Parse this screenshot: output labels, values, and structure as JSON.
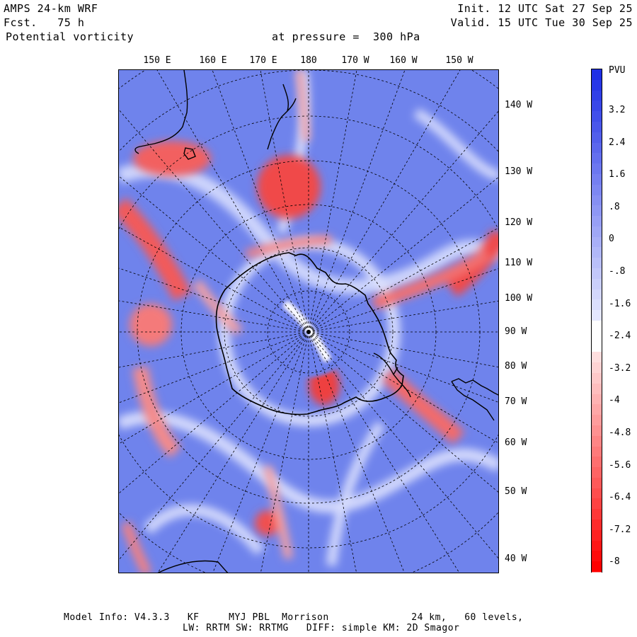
{
  "header": {
    "model": "AMPS 24-km WRF",
    "forecast": "Fcst.   75 h",
    "field": "Potential vorticity",
    "level": "at pressure =  300 hPa",
    "init": "Init. 12 UTC Sat 27 Sep 25",
    "valid": "Valid. 15 UTC Tue 30 Sep 25"
  },
  "map": {
    "lon_labels": [
      "150 E",
      "160 E",
      "170 E",
      "180",
      "170 W",
      "160 W",
      "150 W"
    ],
    "lat_labels": [
      "140 W",
      "130 W",
      "120 W",
      "110 W",
      "100 W",
      "90 W",
      "80 W",
      "70 W",
      "60 W",
      "50 W",
      "40 W"
    ]
  },
  "colorbar": {
    "unit": "PVU",
    "labels": [
      "3.2",
      "2.4",
      "1.6",
      ".8",
      "0",
      "-.8",
      "-1.6",
      "-2.4",
      "-3.2",
      "-4",
      "-4.8",
      "-5.6",
      "-6.4",
      "-7.2",
      "-8"
    ],
    "colors": {
      "positive_strong": "#1f2fe6",
      "positive_weak": "#e8ebff",
      "neutral": "#ffffff",
      "negative_weak": "#ffe6e6",
      "negative_strong": "#ff0000"
    }
  },
  "footer": {
    "line1": "Model Info: V4.3.3   KF     MYJ PBL  Morrison              24 km,   60 levels,",
    "line2": "LW: RRTM SW: RRTMG   DIFF: simple KM: 2D Smagor"
  }
}
